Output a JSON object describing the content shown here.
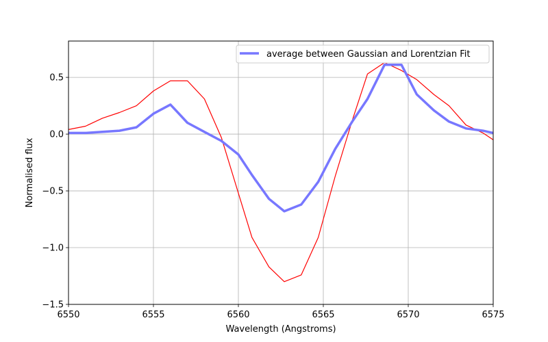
{
  "chart_data": {
    "type": "line",
    "title": "",
    "xlabel": "Wavelength (Angstroms)",
    "ylabel": "Normalised flux",
    "xlim": [
      6550,
      6575
    ],
    "ylim": [
      -1.5,
      0.82
    ],
    "xticks": [
      6550,
      6555,
      6560,
      6565,
      6570,
      6575
    ],
    "xtick_labels": [
      "6550",
      "6555",
      "6560",
      "6565",
      "6570",
      "6575"
    ],
    "yticks": [
      -1.5,
      -1.0,
      -0.5,
      0.0,
      0.5
    ],
    "ytick_labels": [
      "−1.5",
      "−1.0",
      "−0.5",
      "0.0",
      "0.5"
    ],
    "grid": true,
    "legend_position": "top-right",
    "series": [
      {
        "name": "",
        "color": "#ff0000",
        "x": [
          6550,
          6551,
          6552,
          6553,
          6554,
          6555,
          6556,
          6557,
          6558,
          6559,
          6560,
          6560.8,
          6561.8,
          6562.7,
          6563.7,
          6564.7,
          6565.7,
          6566.7,
          6567.6,
          6568.6,
          6569.6,
          6570.5,
          6571.5,
          6572.4,
          6573.4,
          6574.4,
          6575
        ],
        "y": [
          0.04,
          0.07,
          0.14,
          0.19,
          0.25,
          0.38,
          0.47,
          0.47,
          0.31,
          -0.03,
          -0.52,
          -0.91,
          -1.17,
          -1.3,
          -1.24,
          -0.91,
          -0.37,
          0.12,
          0.53,
          0.63,
          0.56,
          0.48,
          0.35,
          0.25,
          0.08,
          0.01,
          -0.05
        ]
      },
      {
        "name": "average between Gaussian and Lorentzian Fit",
        "color": "#7777ff",
        "x": [
          6550,
          6551,
          6552,
          6553,
          6554,
          6555,
          6556,
          6557,
          6558,
          6559,
          6560,
          6560.8,
          6561.8,
          6562.7,
          6563.7,
          6564.7,
          6565.7,
          6566.7,
          6567.6,
          6568.6,
          6569.6,
          6570.5,
          6571.5,
          6572.4,
          6573.4,
          6574.4,
          6575
        ],
        "y": [
          0.01,
          0.01,
          0.02,
          0.03,
          0.06,
          0.18,
          0.26,
          0.1,
          0.02,
          -0.06,
          -0.18,
          -0.36,
          -0.57,
          -0.68,
          -0.62,
          -0.42,
          -0.13,
          0.11,
          0.31,
          0.61,
          0.61,
          0.35,
          0.21,
          0.11,
          0.05,
          0.03,
          0.01
        ]
      }
    ]
  }
}
